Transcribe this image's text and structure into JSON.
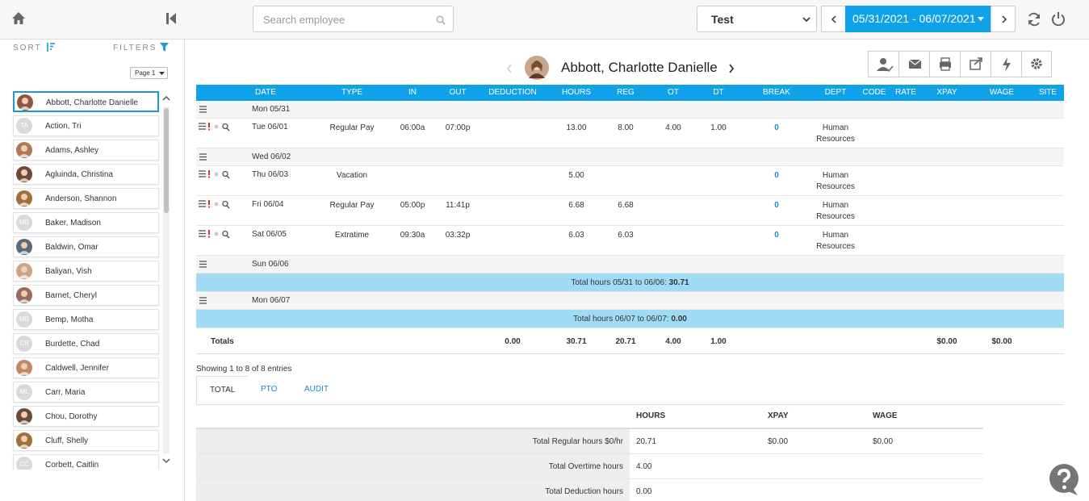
{
  "header": {
    "search_placeholder": "Search employee",
    "company": "Test",
    "date_range": "05/31/2021 - 06/07/2021"
  },
  "sidebar": {
    "sort_label": "SORT",
    "filters_label": "FILTERS",
    "page": "Page 1",
    "employees": [
      {
        "name": "Abbott, Charlotte Danielle"
      },
      {
        "name": "Action, Tri",
        "initials": "TA"
      },
      {
        "name": "Adams, Ashley"
      },
      {
        "name": "Agluinda, Christina"
      },
      {
        "name": "Anderson, Shannon"
      },
      {
        "name": "Baker, Madison",
        "initials": "MB"
      },
      {
        "name": "Baldwin, Omar"
      },
      {
        "name": "Baliyan, Vish"
      },
      {
        "name": "Barnet, Cheryl"
      },
      {
        "name": "Bemp, Motha",
        "initials": "MB"
      },
      {
        "name": "Burdette, Chad",
        "initials": "CB"
      },
      {
        "name": "Caldwell, Jennifer"
      },
      {
        "name": "Carr, Maria",
        "initials": "ML"
      },
      {
        "name": "Chou, Dorothy"
      },
      {
        "name": "Cluff, Shelly"
      },
      {
        "name": "Corbett, Caitlin",
        "initials": "CC"
      }
    ]
  },
  "timesheet": {
    "employee": "Abbott, Charlotte Danielle",
    "columns": [
      "DATE",
      "TYPE",
      "IN",
      "OUT",
      "DEDUCTION",
      "HOURS",
      "REG",
      "OT",
      "DT",
      "BREAK",
      "DEPT",
      "CODE",
      "RATE",
      "XPAY",
      "WAGE",
      "SITE"
    ],
    "rows": [
      {
        "date": "Mon 05/31"
      },
      {
        "cells": [
          "Tue 06/01",
          "Regular Pay",
          "06:00a",
          "07:00p",
          null,
          "13.00",
          "8.00",
          "4.00",
          "1.00",
          "0",
          "Human Resources",
          null,
          null,
          null,
          null,
          null
        ]
      },
      {
        "date": "Wed 06/02"
      },
      {
        "cells": [
          "Thu 06/03",
          "Vacation",
          null,
          null,
          null,
          "5.00",
          null,
          null,
          null,
          "0",
          "Human Resources",
          null,
          null,
          null,
          null,
          null
        ]
      },
      {
        "cells": [
          "Fri 06/04",
          "Regular Pay",
          "05:00p",
          "11:41p",
          null,
          "6.68",
          "6.68",
          null,
          null,
          "0",
          "Human Resources",
          null,
          null,
          null,
          null,
          null
        ]
      },
      {
        "cells": [
          "Sat 06/05",
          "Extratime",
          "09:30a",
          "03:32p",
          null,
          "6.03",
          "6.03",
          null,
          null,
          "0",
          "Human Resources",
          null,
          null,
          null,
          null,
          null
        ]
      },
      {
        "date": "Sun 06/06"
      },
      {
        "subtotal": "Total hours 05/31 to 06/06:",
        "value": "30.71"
      },
      {
        "date": "Mon 06/07"
      },
      {
        "subtotal": "Total hours 06/07 to 06/07:",
        "value": "0.00"
      }
    ],
    "totals": {
      "label": "Totals",
      "cells": [
        null,
        null,
        null,
        null,
        "0.00",
        "30.71",
        "20.71",
        "4.00",
        "1.00",
        null,
        null,
        null,
        null,
        "$0.00",
        "$0.00",
        null
      ]
    },
    "entries_info": "Showing 1 to 8 of 8 entries"
  },
  "tabs": [
    "TOTAL",
    "PTO",
    "AUDIT"
  ],
  "summary": {
    "columns": [
      "HOURS",
      "XPAY",
      "WAGE"
    ],
    "rows": [
      {
        "label": "Total Regular hours $0/hr",
        "cells": [
          "20.71",
          "$0.00",
          "$0.00"
        ]
      },
      {
        "label": "Total Overtime hours",
        "cells": [
          "4.00"
        ]
      },
      {
        "label": "Total Deduction hours",
        "cells": [
          "0.00"
        ]
      }
    ]
  }
}
